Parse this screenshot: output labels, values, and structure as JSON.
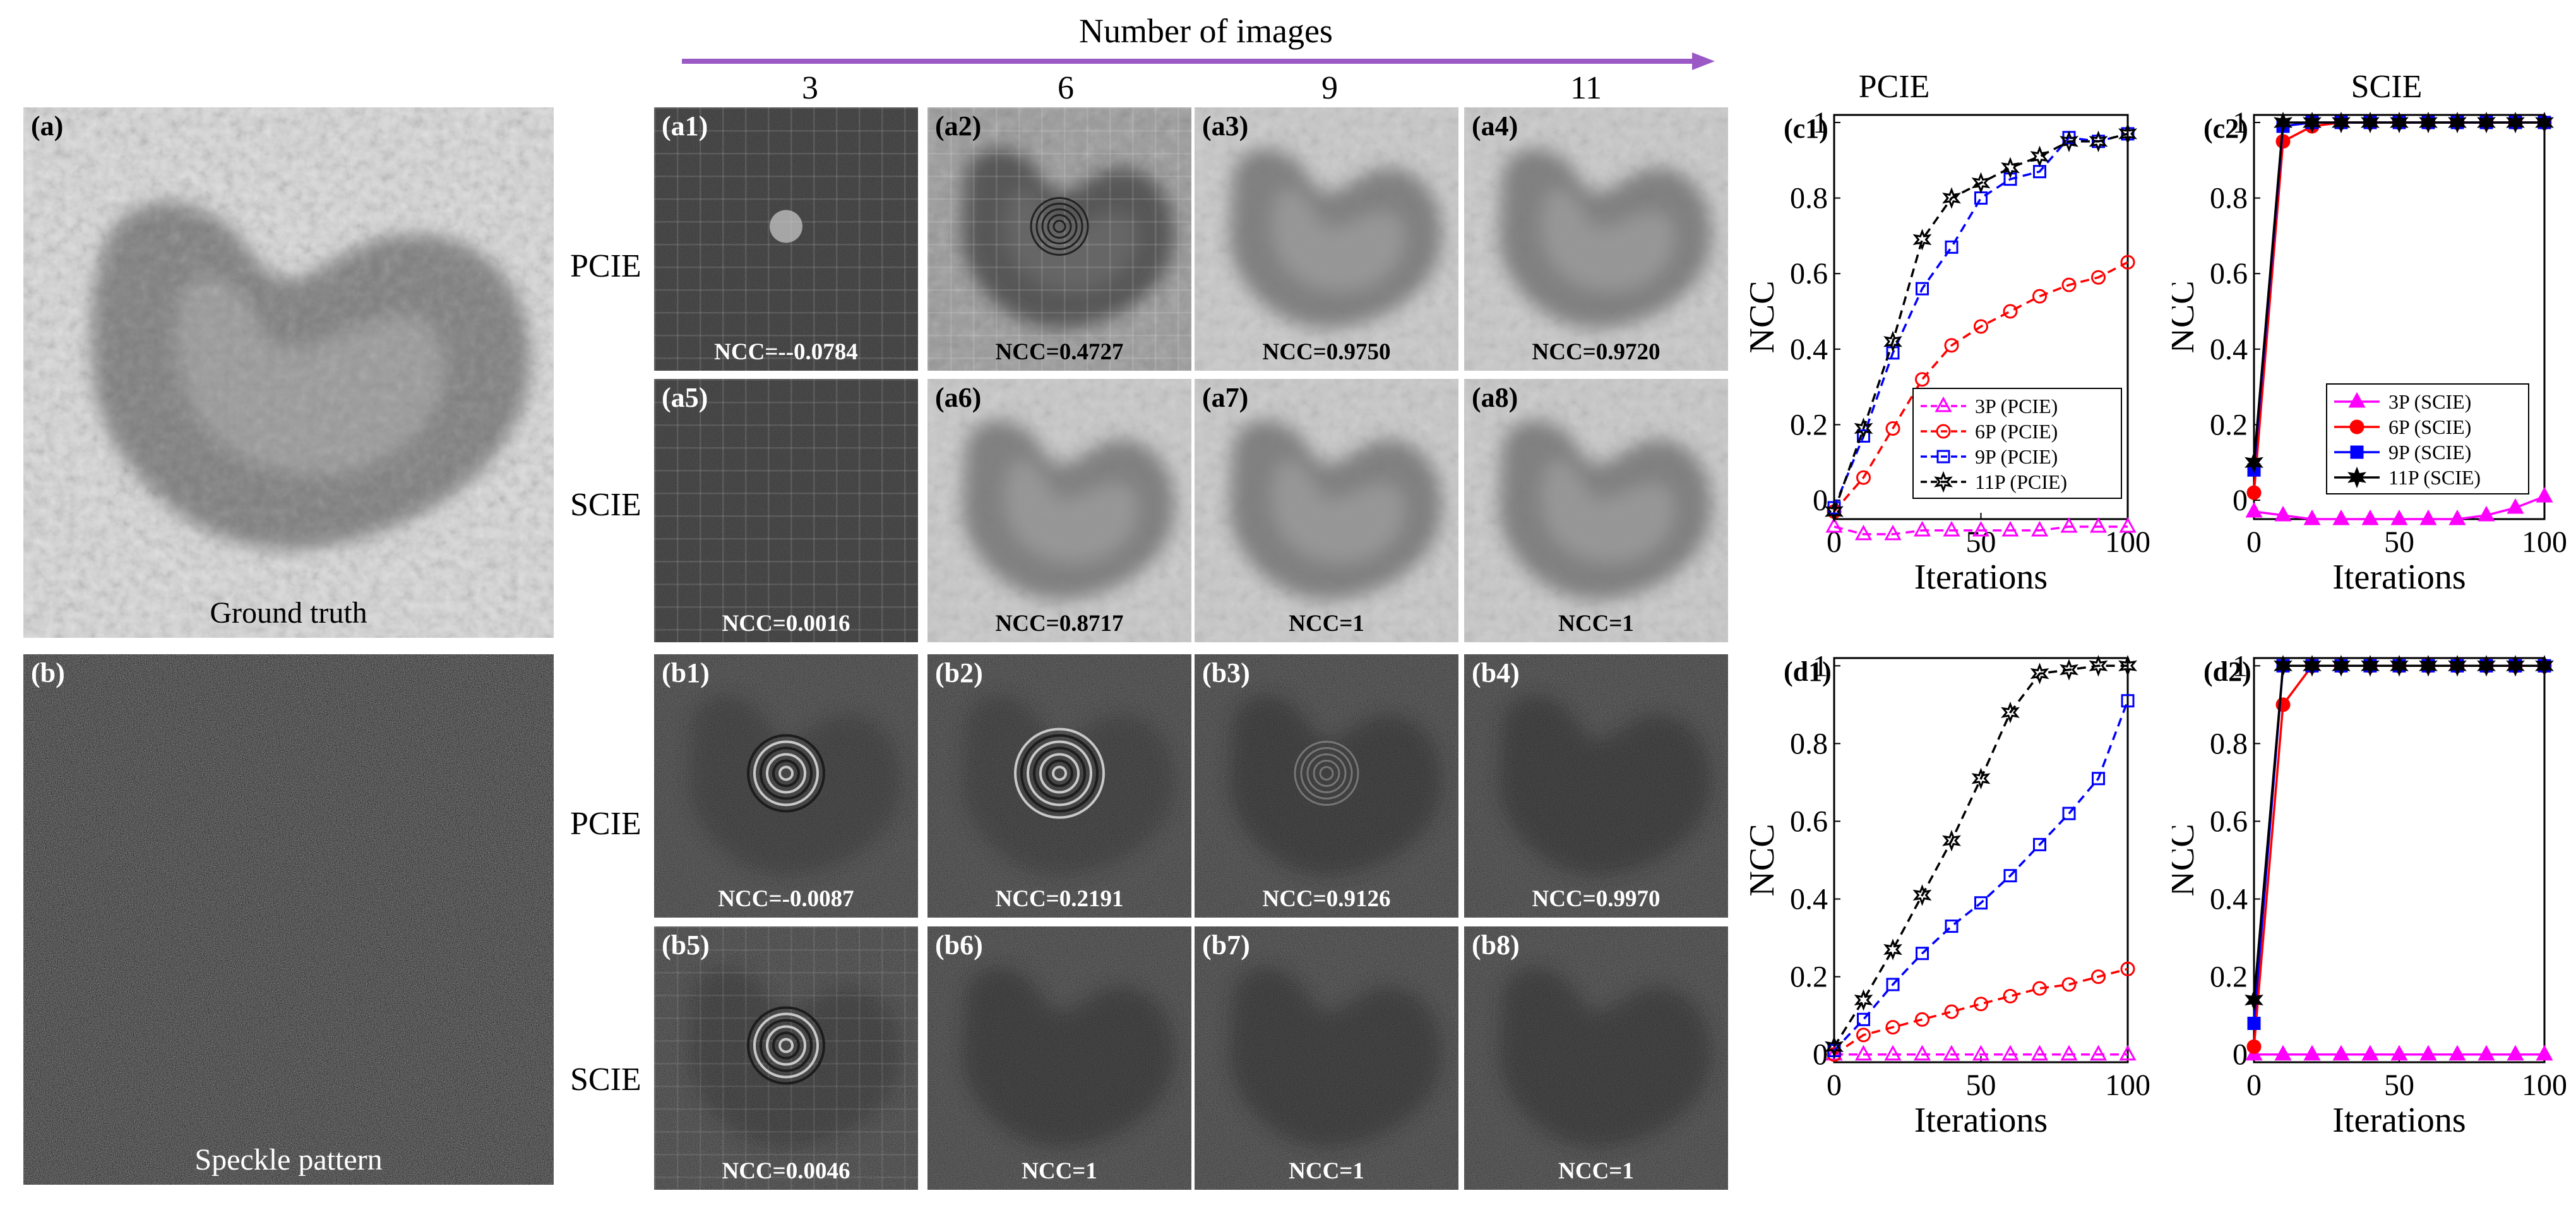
{
  "header": {
    "title": "Number of images",
    "columns": [
      "3",
      "6",
      "9",
      "11"
    ],
    "arrow_color": "#9b59c6"
  },
  "row_labels": [
    "PCIE",
    "SCIE",
    "PCIE",
    "SCIE"
  ],
  "left_panels": [
    {
      "tag": "(a)",
      "caption": "Ground truth"
    },
    {
      "tag": "(b)",
      "caption": "Speckle pattern"
    }
  ],
  "grid": [
    {
      "tag": "(a1)",
      "ncc": "NCC=--0.0784",
      "kind": "a",
      "level": "noise"
    },
    {
      "tag": "(a2)",
      "ncc": "NCC=0.4727",
      "kind": "a",
      "level": "partial"
    },
    {
      "tag": "(a3)",
      "ncc": "NCC=0.9750",
      "kind": "a",
      "level": "good"
    },
    {
      "tag": "(a4)",
      "ncc": "NCC=0.9720",
      "kind": "a",
      "level": "good"
    },
    {
      "tag": "(a5)",
      "ncc": "NCC=0.0016",
      "kind": "a",
      "level": "noise"
    },
    {
      "tag": "(a6)",
      "ncc": "NCC=0.8717",
      "kind": "a",
      "level": "good"
    },
    {
      "tag": "(a7)",
      "ncc": "NCC=1",
      "kind": "a",
      "level": "good"
    },
    {
      "tag": "(a8)",
      "ncc": "NCC=1",
      "kind": "a",
      "level": "good"
    },
    {
      "tag": "(b1)",
      "ncc": "NCC=-0.0087",
      "kind": "b",
      "level": "rings"
    },
    {
      "tag": "(b2)",
      "ncc": "NCC=0.2191",
      "kind": "b",
      "level": "rings"
    },
    {
      "tag": "(b3)",
      "ncc": "NCC=0.9126",
      "kind": "b",
      "level": "faint"
    },
    {
      "tag": "(b4)",
      "ncc": "NCC=0.9970",
      "kind": "b",
      "level": "faint"
    },
    {
      "tag": "(b5)",
      "ncc": "NCC=0.0046",
      "kind": "b",
      "level": "rings"
    },
    {
      "tag": "(b6)",
      "ncc": "NCC=1",
      "kind": "b",
      "level": "faint"
    },
    {
      "tag": "(b7)",
      "ncc": "NCC=1",
      "kind": "b",
      "level": "faint"
    },
    {
      "tag": "(b8)",
      "ncc": "NCC=1",
      "kind": "b",
      "level": "faint"
    }
  ],
  "plot_titles": [
    "PCIE",
    "SCIE"
  ],
  "chart_data": [
    {
      "id": "c1",
      "type": "line",
      "tag": "(c1)",
      "xlabel": "Iterations",
      "ylabel": "NCC",
      "xlim": [
        0,
        100
      ],
      "ylim": [
        -0.05,
        1.02
      ],
      "xticks": [
        "0",
        "50",
        "100"
      ],
      "yticks": [
        "0",
        "0.2",
        "0.4",
        "0.6",
        "0.8",
        "1"
      ],
      "legend_position": "lower-right",
      "series": [
        {
          "name": "3P (PCIE)",
          "color": "#ff00ff",
          "marker": "triangle-open",
          "x": [
            0,
            10,
            20,
            30,
            40,
            50,
            60,
            70,
            80,
            90,
            100
          ],
          "y": [
            -0.07,
            -0.09,
            -0.09,
            -0.08,
            -0.08,
            -0.08,
            -0.08,
            -0.08,
            -0.07,
            -0.07,
            -0.07
          ]
        },
        {
          "name": "6P (PCIE)",
          "color": "#ff0000",
          "marker": "circle-open",
          "x": [
            0,
            10,
            20,
            30,
            40,
            50,
            60,
            70,
            80,
            90,
            100
          ],
          "y": [
            -0.03,
            0.06,
            0.19,
            0.32,
            0.41,
            0.46,
            0.5,
            0.54,
            0.57,
            0.59,
            0.63
          ]
        },
        {
          "name": "9P (PCIE)",
          "color": "#0000ff",
          "marker": "square-open",
          "x": [
            0,
            10,
            20,
            30,
            40,
            50,
            60,
            70,
            80,
            90,
            100
          ],
          "y": [
            -0.02,
            0.17,
            0.39,
            0.56,
            0.67,
            0.8,
            0.85,
            0.87,
            0.96,
            0.95,
            0.97
          ]
        },
        {
          "name": "11P (PCIE)",
          "color": "#000000",
          "marker": "hexagram-open",
          "x": [
            0,
            10,
            20,
            30,
            40,
            50,
            60,
            70,
            80,
            90,
            100
          ],
          "y": [
            -0.03,
            0.19,
            0.42,
            0.69,
            0.8,
            0.84,
            0.88,
            0.91,
            0.95,
            0.95,
            0.97
          ]
        }
      ]
    },
    {
      "id": "c2",
      "type": "line",
      "tag": "(c2)",
      "xlabel": "Iterations",
      "ylabel": "NCC",
      "xlim": [
        0,
        100
      ],
      "ylim": [
        -0.05,
        1.02
      ],
      "xticks": [
        "0",
        "50",
        "100"
      ],
      "yticks": [
        "0",
        "0.2",
        "0.4",
        "0.6",
        "0.8",
        "1"
      ],
      "legend_position": "lower-right",
      "series": [
        {
          "name": "3P (SCIE)",
          "color": "#ff00ff",
          "marker": "triangle-filled",
          "x": [
            0,
            10,
            20,
            30,
            40,
            50,
            60,
            70,
            80,
            90,
            100
          ],
          "y": [
            -0.03,
            -0.04,
            -0.05,
            -0.05,
            -0.05,
            -0.05,
            -0.05,
            -0.05,
            -0.04,
            -0.02,
            0.01
          ]
        },
        {
          "name": "6P (SCIE)",
          "color": "#ff0000",
          "marker": "circle-filled",
          "x": [
            0,
            10,
            20,
            30,
            40,
            50,
            60,
            70,
            80,
            90,
            100
          ],
          "y": [
            0.02,
            0.95,
            0.99,
            1,
            1,
            1,
            1,
            1,
            1,
            1,
            1
          ]
        },
        {
          "name": "9P (SCIE)",
          "color": "#0000ff",
          "marker": "square-filled",
          "x": [
            0,
            10,
            20,
            30,
            40,
            50,
            60,
            70,
            80,
            90,
            100
          ],
          "y": [
            0.08,
            0.99,
            1,
            1,
            1,
            1,
            1,
            1,
            1,
            1,
            1
          ]
        },
        {
          "name": "11P (SCIE)",
          "color": "#000000",
          "marker": "hexagram-filled",
          "x": [
            0,
            10,
            20,
            30,
            40,
            50,
            60,
            70,
            80,
            90,
            100
          ],
          "y": [
            0.1,
            1,
            1,
            1,
            1,
            1,
            1,
            1,
            1,
            1,
            1
          ]
        }
      ]
    },
    {
      "id": "d1",
      "type": "line",
      "tag": "(d1)",
      "xlabel": "Iterations",
      "ylabel": "NCC",
      "xlim": [
        0,
        100
      ],
      "ylim": [
        -0.02,
        1.02
      ],
      "xticks": [
        "0",
        "50",
        "100"
      ],
      "yticks": [
        "0",
        "0.2",
        "0.4",
        "0.6",
        "0.8",
        "1"
      ],
      "series": [
        {
          "name": "3P (PCIE)",
          "color": "#ff00ff",
          "marker": "triangle-open",
          "x": [
            0,
            10,
            20,
            30,
            40,
            50,
            60,
            70,
            80,
            90,
            100
          ],
          "y": [
            0,
            0,
            0,
            0,
            0,
            0,
            0,
            0,
            0,
            0,
            0
          ]
        },
        {
          "name": "6P (PCIE)",
          "color": "#ff0000",
          "marker": "circle-open",
          "x": [
            0,
            10,
            20,
            30,
            40,
            50,
            60,
            70,
            80,
            90,
            100
          ],
          "y": [
            0,
            0.05,
            0.07,
            0.09,
            0.11,
            0.13,
            0.15,
            0.17,
            0.18,
            0.2,
            0.22
          ]
        },
        {
          "name": "9P (PCIE)",
          "color": "#0000ff",
          "marker": "square-open",
          "x": [
            0,
            10,
            20,
            30,
            40,
            50,
            60,
            70,
            80,
            90,
            100
          ],
          "y": [
            0.01,
            0.09,
            0.18,
            0.26,
            0.33,
            0.39,
            0.46,
            0.54,
            0.62,
            0.71,
            0.91
          ]
        },
        {
          "name": "11P (PCIE)",
          "color": "#000000",
          "marker": "hexagram-open",
          "x": [
            0,
            10,
            20,
            30,
            40,
            50,
            60,
            70,
            80,
            90,
            100
          ],
          "y": [
            0.02,
            0.14,
            0.27,
            0.41,
            0.55,
            0.71,
            0.88,
            0.98,
            0.99,
            1,
            1
          ]
        }
      ]
    },
    {
      "id": "d2",
      "type": "line",
      "tag": "(d2)",
      "xlabel": "Iterations",
      "ylabel": "NCC",
      "xlim": [
        0,
        100
      ],
      "ylim": [
        -0.02,
        1.02
      ],
      "xticks": [
        "0",
        "50",
        "100"
      ],
      "yticks": [
        "0",
        "0.2",
        "0.4",
        "0.6",
        "0.8",
        "1"
      ],
      "series": [
        {
          "name": "3P (SCIE)",
          "color": "#ff00ff",
          "marker": "triangle-filled",
          "x": [
            0,
            10,
            20,
            30,
            40,
            50,
            60,
            70,
            80,
            90,
            100
          ],
          "y": [
            0,
            0,
            0,
            0,
            0,
            0,
            0,
            0,
            0,
            0,
            0
          ]
        },
        {
          "name": "6P (SCIE)",
          "color": "#ff0000",
          "marker": "circle-filled",
          "x": [
            0,
            10,
            20,
            30,
            40,
            50,
            60,
            70,
            80,
            90,
            100
          ],
          "y": [
            0.02,
            0.9,
            1,
            1,
            1,
            1,
            1,
            1,
            1,
            1,
            1
          ]
        },
        {
          "name": "9P (SCIE)",
          "color": "#0000ff",
          "marker": "square-filled",
          "x": [
            0,
            10,
            20,
            30,
            40,
            50,
            60,
            70,
            80,
            90,
            100
          ],
          "y": [
            0.08,
            1,
            1,
            1,
            1,
            1,
            1,
            1,
            1,
            1,
            1
          ]
        },
        {
          "name": "11P (SCIE)",
          "color": "#000000",
          "marker": "hexagram-filled",
          "x": [
            0,
            10,
            20,
            30,
            40,
            50,
            60,
            70,
            80,
            90,
            100
          ],
          "y": [
            0.14,
            1,
            1,
            1,
            1,
            1,
            1,
            1,
            1,
            1,
            1
          ]
        }
      ]
    }
  ]
}
